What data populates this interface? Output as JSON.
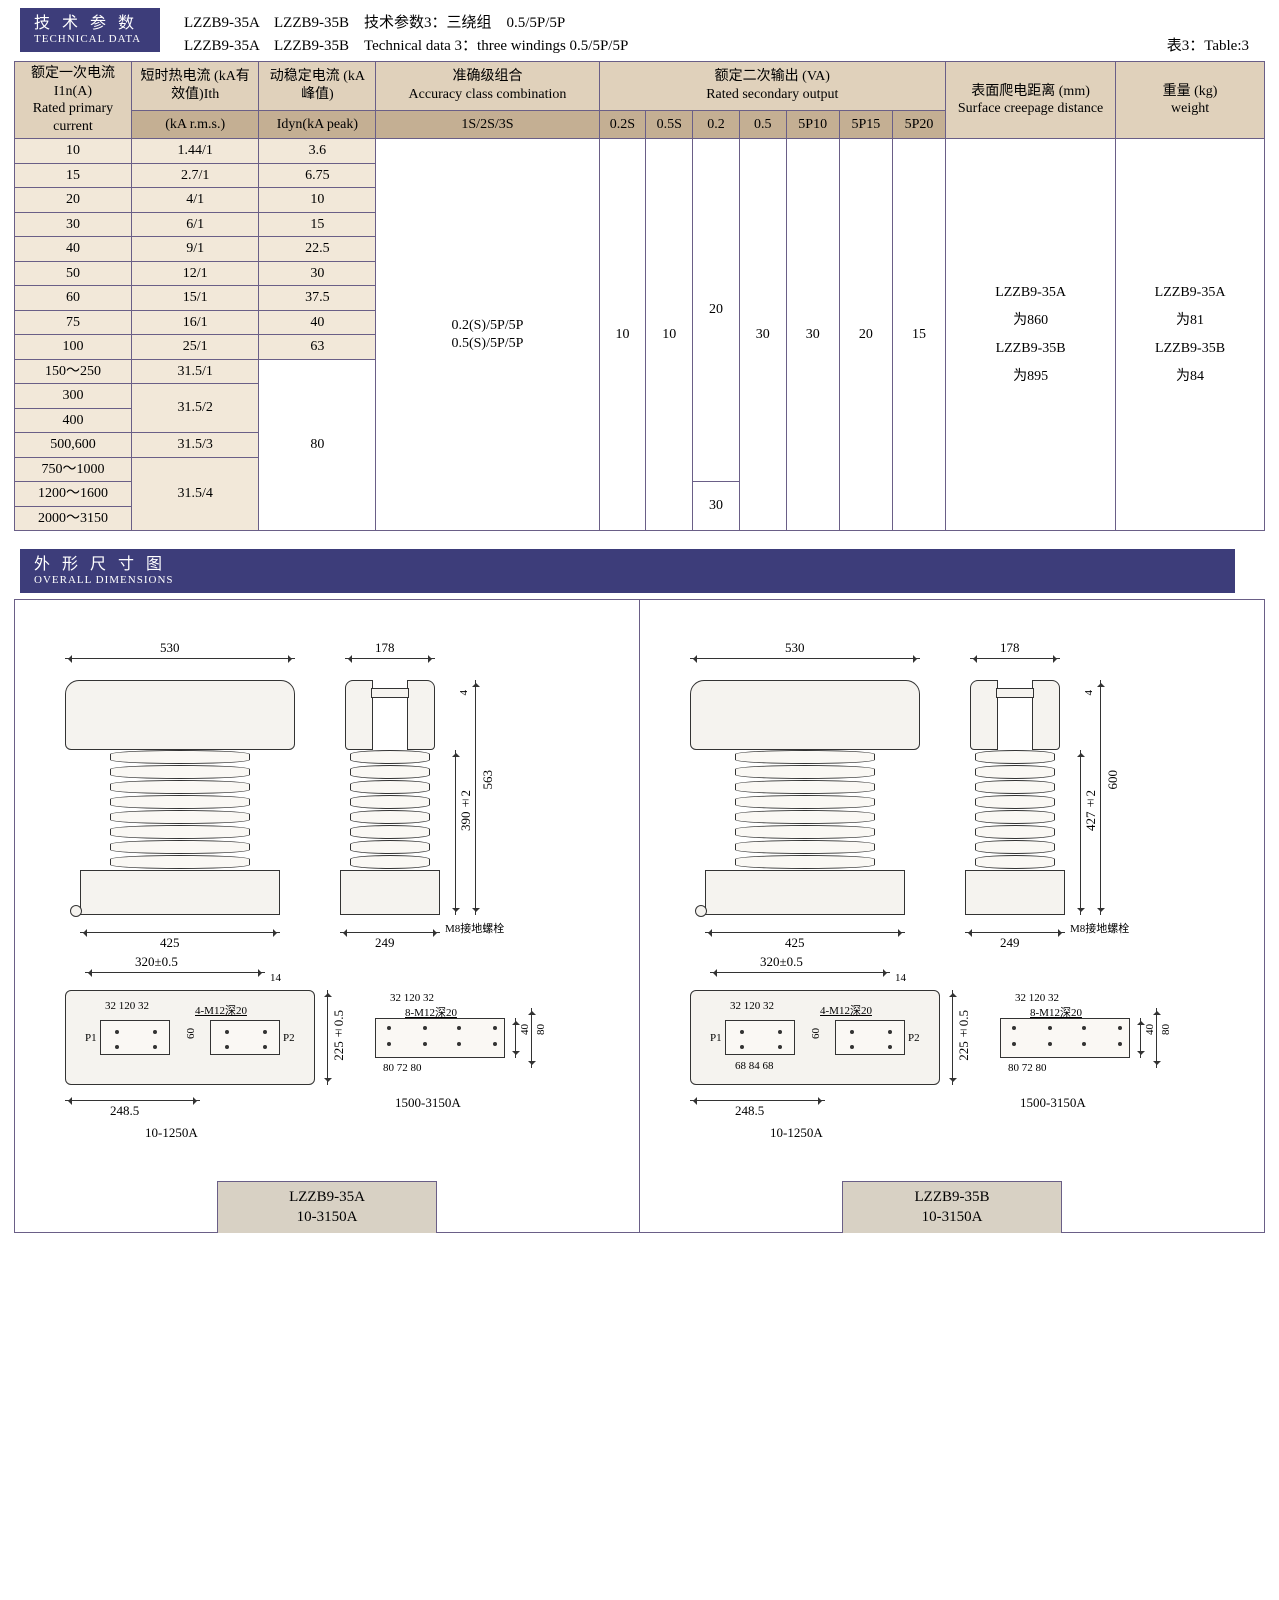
{
  "section1": {
    "badge_cn": "技 术 参 数",
    "badge_en": "TECHNICAL DATA",
    "line1": "LZZB9-35A　LZZB9-35B　技术参数3：三绕组　0.5/5P/5P",
    "line2": "LZZB9-35A　LZZB9-35B　Technical data 3：three windings 0.5/5P/5P",
    "table_label": "表3：Table:3"
  },
  "table": {
    "headers": {
      "col1_cn": "额定一次电流 I1n(A)",
      "col1_en": "Rated primary current",
      "col2_cn": "短时热电流 (kA有效值)Ith",
      "col2_en": "(kA r.m.s.)",
      "col3_cn": "动稳定电流 (kA峰值)",
      "col3_en": "Idyn(kA peak)",
      "col4_cn": "准确级组合",
      "col4_en": "Accuracy class combination",
      "col4_sub": "1S/2S/3S",
      "col5_cn": "额定二次输出 (VA)",
      "col5_en": "Rated secondary output",
      "sub": {
        "a": "0.2S",
        "b": "0.5S",
        "c": "0.2",
        "d": "0.5",
        "e": "5P10",
        "f": "5P15",
        "g": "5P20"
      },
      "col6_cn": "表面爬电距离 (mm)",
      "col6_en": "Surface creepage distance",
      "col7_cn": "重量 (kg)",
      "col7_en": "weight"
    },
    "rows": [
      {
        "c1": "10",
        "c2": "1.44/1",
        "c3": "3.6"
      },
      {
        "c1": "15",
        "c2": "2.7/1",
        "c3": "6.75"
      },
      {
        "c1": "20",
        "c2": "4/1",
        "c3": "10"
      },
      {
        "c1": "30",
        "c2": "6/1",
        "c3": "15"
      },
      {
        "c1": "40",
        "c2": "9/1",
        "c3": "22.5"
      },
      {
        "c1": "50",
        "c2": "12/1",
        "c3": "30"
      },
      {
        "c1": "60",
        "c2": "15/1",
        "c3": "37.5"
      },
      {
        "c1": "75",
        "c2": "16/1",
        "c3": "40"
      },
      {
        "c1": "100",
        "c2": "25/1",
        "c3": "63"
      },
      {
        "c1": "150～250",
        "c2": "31.5/1"
      },
      {
        "c1": "300"
      },
      {
        "c1": "400",
        "c2": "31.5/2"
      },
      {
        "c1": "500,600",
        "c2_single": "31.5/3"
      },
      {
        "c1": "750～1000"
      },
      {
        "c1": "1200～1600"
      },
      {
        "c1": "2000～3150",
        "c2": "31.5/4"
      }
    ],
    "merged": {
      "accuracy": "0.2(S)/5P/5P\n0.5(S)/5P/5P",
      "out_02s": "10",
      "out_05s": "10",
      "out_02": "20",
      "out_02_alt": "30",
      "out_05": "30",
      "out_5p10": "30",
      "out_5p15": "20",
      "out_5p20": "15",
      "creep": "LZZB9-35A\n为860\nLZZB9-35B\n为895",
      "weight": "LZZB9-35A\n为81\nLZZB9-35B\n为84",
      "idyn80": "80"
    },
    "colors": {
      "hdr1_bg": "#e0d1bb",
      "hdr2_bg": "#c4af93",
      "row_alt_bg": "#f2e8d9",
      "border": "#6a5f87"
    }
  },
  "section2": {
    "badge_cn": "外 形 尺 寸 图",
    "badge_en": "OVERALL DIMENSIONS"
  },
  "drawings": {
    "left": {
      "model": "LZZB9-35A\n10-3150A",
      "top_w": "530",
      "side_w": "178",
      "base_w": "425",
      "side_base": "249",
      "height": "563",
      "inner_h": "390±2",
      "top_gap": "4",
      "bolt": "M8接地螺栓",
      "plan_w": "320±0.5",
      "plan_off": "14",
      "plan_h": "225±0.5",
      "plan_base": "248.5",
      "term": "32 120 32",
      "term_note": "4-M12深20",
      "p1": "P1",
      "p2": "P2",
      "sixty": "60",
      "range1": "10-1250A",
      "right_block": "32 120 32",
      "right_note": "8-M12深20",
      "rb_80a": "80",
      "rb_72": "72",
      "rb_80b": "80",
      "rb_40": "40",
      "rb_80c": "80",
      "range2": "1500-3150A"
    },
    "right": {
      "model": "LZZB9-35B\n10-3150A",
      "top_w": "530",
      "side_w": "178",
      "base_w": "425",
      "side_base": "249",
      "height": "600",
      "inner_h": "427±2",
      "top_gap": "4",
      "bolt": "M8接地螺栓",
      "plan_w": "320±0.5",
      "plan_off": "14",
      "plan_h": "225±0.5",
      "plan_base": "248.5",
      "term": "32 120 32",
      "term_note": "4-M12深20",
      "p1": "P1",
      "p2": "P2",
      "sixty": "60",
      "b68a": "68",
      "b84": "84",
      "b68b": "68",
      "range1": "10-1250A",
      "right_block": "32 120 32",
      "right_note": "8-M12深20",
      "rb_80a": "80",
      "rb_72": "72",
      "rb_80b": "80",
      "rb_40": "40",
      "rb_80c": "80",
      "range2": "1500-3150A"
    }
  }
}
